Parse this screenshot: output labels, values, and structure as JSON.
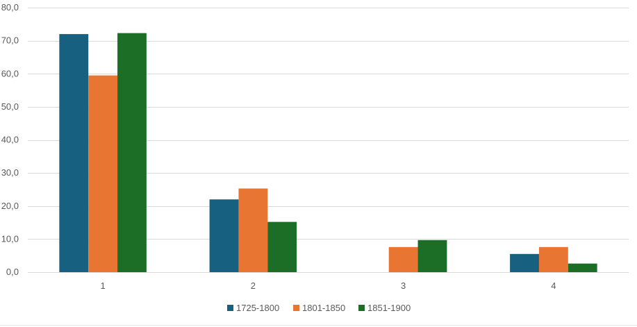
{
  "chart_data": {
    "type": "bar",
    "title": "",
    "xlabel": "",
    "ylabel": "",
    "categories": [
      "1",
      "2",
      "3",
      "4"
    ],
    "series": [
      {
        "name": "1725-1800",
        "color": "#17607f",
        "values": [
          72.0,
          22.0,
          0.0,
          5.5
        ]
      },
      {
        "name": "1801-1850",
        "color": "#e97533",
        "values": [
          59.5,
          25.3,
          7.6,
          7.6
        ]
      },
      {
        "name": "1851-1900",
        "color": "#1c6e27",
        "values": [
          72.3,
          15.2,
          9.7,
          2.6
        ]
      }
    ],
    "ylim": [
      0,
      80
    ],
    "yticks": [
      "0,0",
      "10,0",
      "20,0",
      "30,0",
      "40,0",
      "50,0",
      "60,0",
      "70,0",
      "80,0"
    ],
    "grid": true,
    "legend_position": "bottom"
  }
}
